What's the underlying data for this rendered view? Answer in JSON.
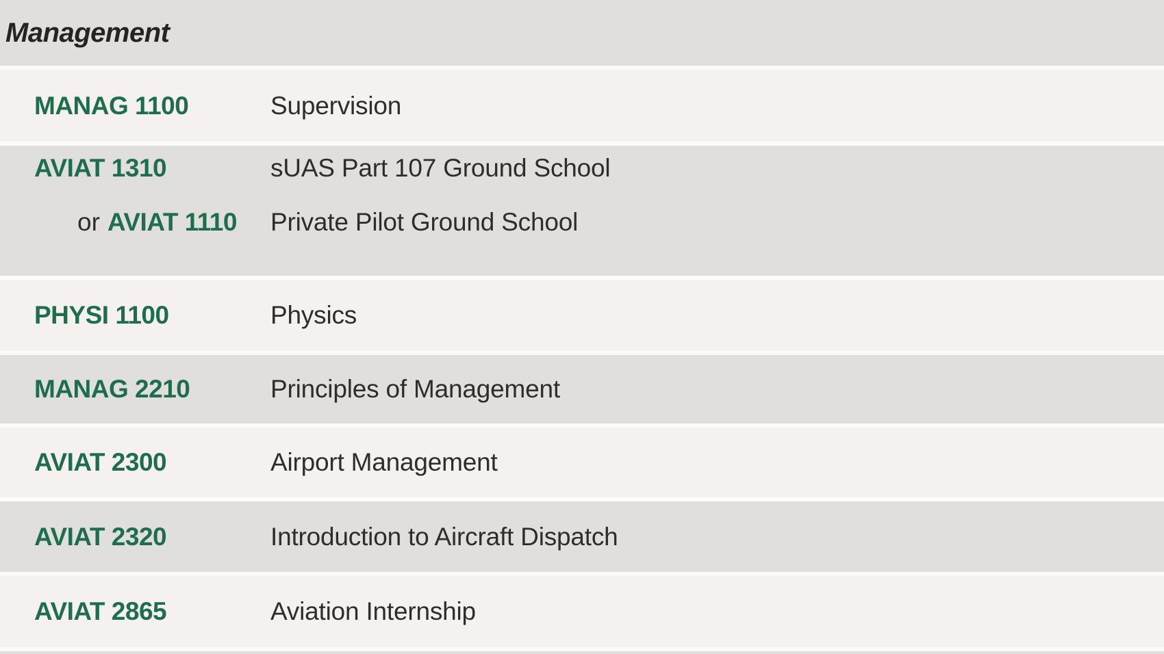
{
  "section": {
    "title": "Management"
  },
  "rows": [
    {
      "code": "MANAG 1100",
      "title": "Supervision"
    },
    {
      "lines": [
        {
          "code": "AVIAT 1310",
          "title": "sUAS Part 107 Ground School"
        },
        {
          "prefix": "or",
          "code": "AVIAT 1110",
          "title": "Private Pilot Ground School"
        }
      ]
    },
    {
      "code": "PHYSI 1100",
      "title": "Physics"
    },
    {
      "code": "MANAG 2210",
      "title": "Principles of Management"
    },
    {
      "code": "AVIAT 2300",
      "title": "Airport Management"
    },
    {
      "code": "AVIAT 2320",
      "title": "Introduction to Aircraft Dispatch"
    },
    {
      "code": "AVIAT 2865",
      "title": "Aviation Internship"
    }
  ],
  "colors": {
    "accent_green": "#1e6e4e",
    "row_light": "#f4f1ef",
    "row_dark": "#e1dfdd",
    "separator": "#fbfaf9",
    "text_dark": "#2e2d2b",
    "header_text": "#252422"
  }
}
